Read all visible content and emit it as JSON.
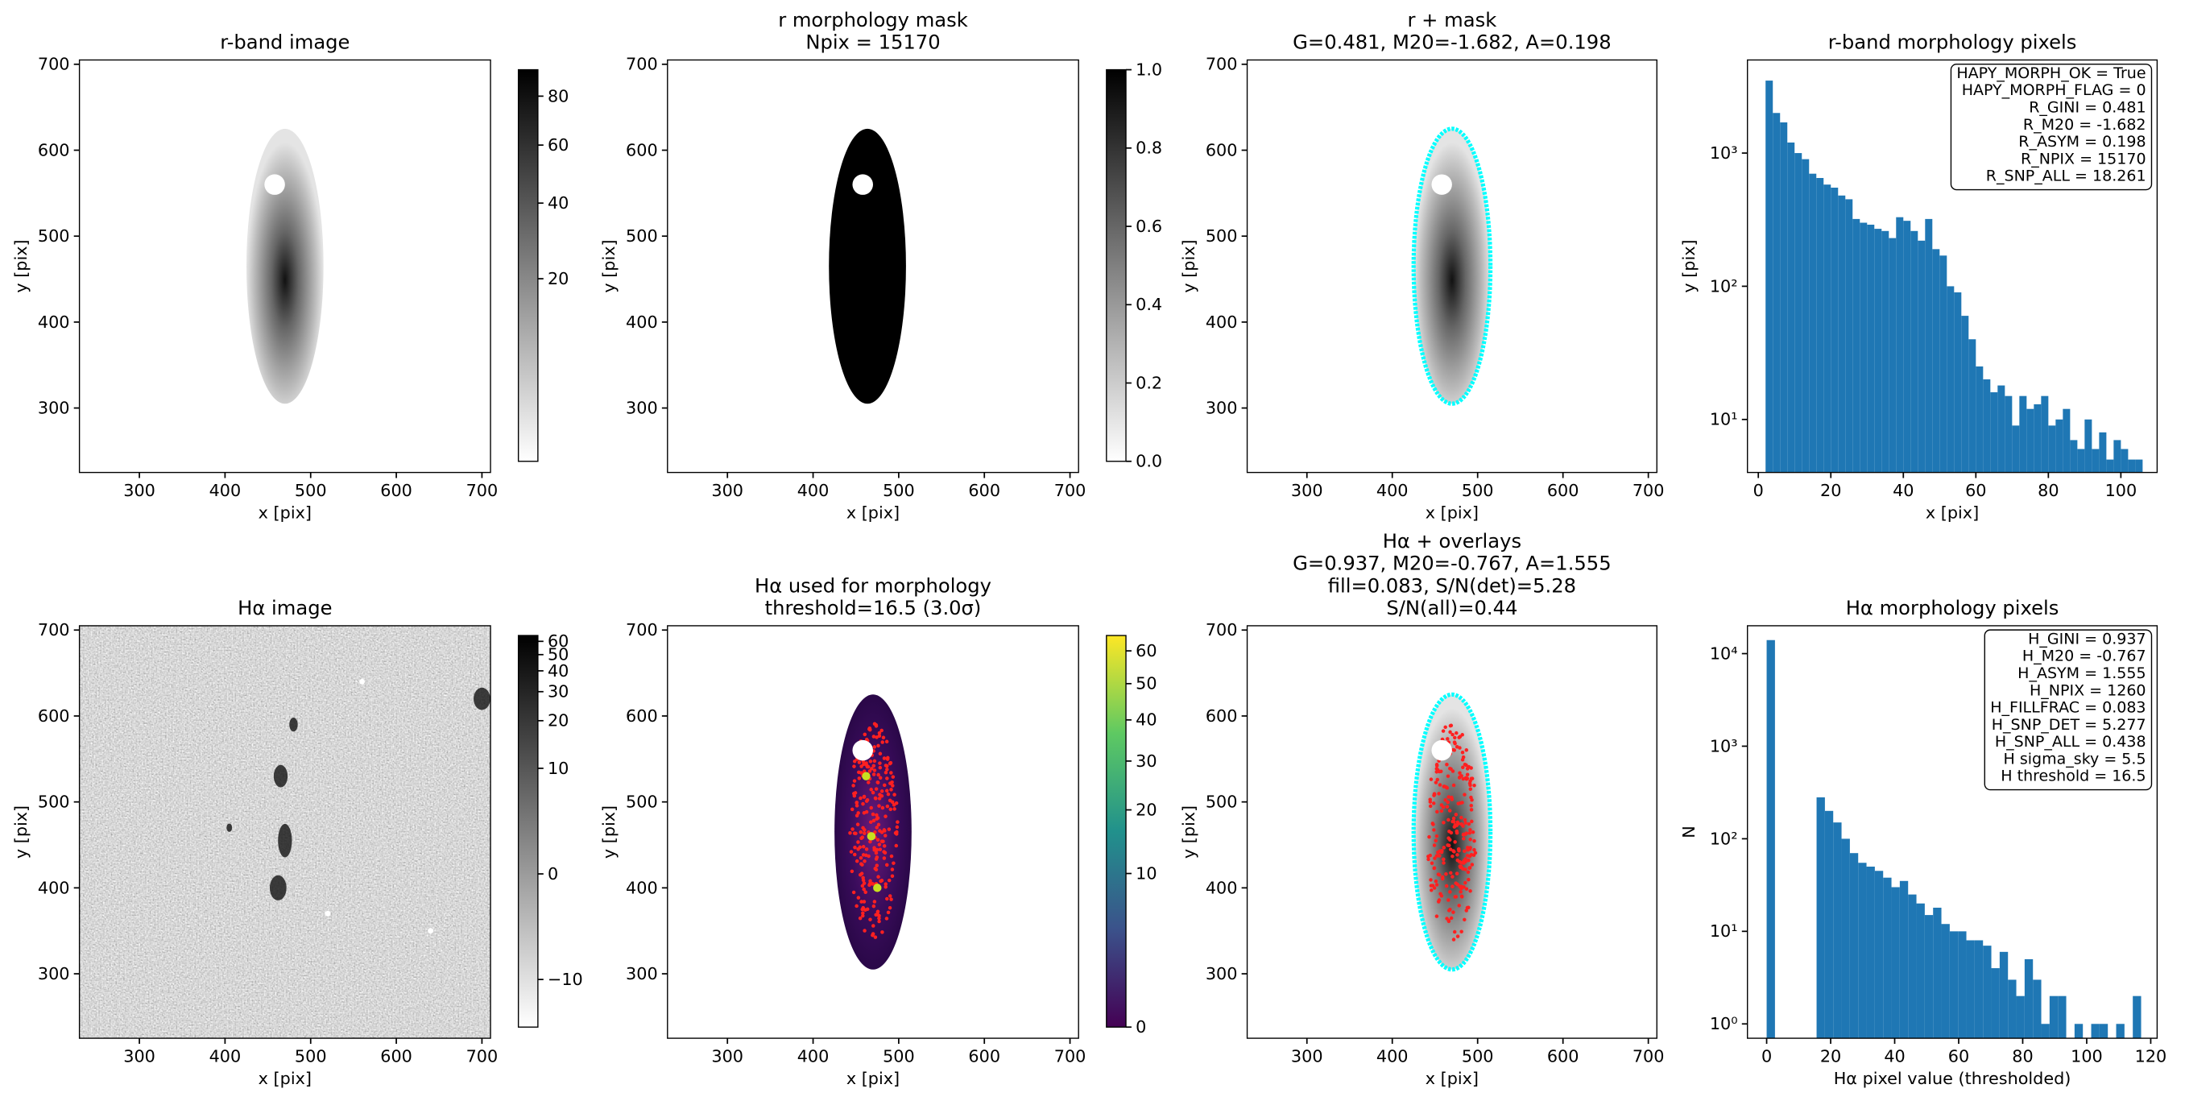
{
  "chart_data": [
    {
      "type": "image",
      "title": [
        "r-band image"
      ],
      "xlabel": "x [pix]",
      "ylabel": "y [pix]",
      "xlim": [
        230,
        710
      ],
      "ylim": [
        225,
        705
      ],
      "xticks": [
        300,
        400,
        500,
        600,
        700
      ],
      "yticks": [
        300,
        400,
        500,
        600,
        700
      ],
      "cmap": "gray_r",
      "colorbar": {
        "lim": [
          0,
          92
        ],
        "stretch": "sqrt",
        "ticks": [
          20,
          40,
          60,
          80
        ]
      }
    },
    {
      "type": "image",
      "title": [
        "r morphology mask",
        "Npix = 15170"
      ],
      "xlabel": "x [pix]",
      "ylabel": "y [pix]",
      "xlim": [
        230,
        710
      ],
      "ylim": [
        225,
        705
      ],
      "xticks": [
        300,
        400,
        500,
        600,
        700
      ],
      "yticks": [
        300,
        400,
        500,
        600,
        700
      ],
      "cmap": "gray_r",
      "colorbar": {
        "lim": [
          0,
          1
        ],
        "stretch": "linear",
        "ticks": [
          {
            "value": 0,
            "label": "0.0"
          },
          {
            "value": 0.2,
            "label": "0.2"
          },
          {
            "value": 0.4,
            "label": "0.4"
          },
          {
            "value": 0.6,
            "label": "0.6"
          },
          {
            "value": 0.8,
            "label": "0.8"
          },
          {
            "value": 1,
            "label": "1.0"
          }
        ]
      }
    },
    {
      "type": "image",
      "title": [
        "r + mask",
        "G=0.481, M20=-1.682, A=0.198"
      ],
      "xlabel": "x [pix]",
      "ylabel": "y [pix]",
      "xlim": [
        230,
        710
      ],
      "ylim": [
        225,
        705
      ],
      "xticks": [
        300,
        400,
        500,
        600,
        700
      ],
      "yticks": [
        300,
        400,
        500,
        600,
        700
      ],
      "cmap": "gray_r"
    },
    {
      "type": "histogram",
      "title": [
        "r-band morphology pixels"
      ],
      "xlabel": "x [pix]",
      "ylabel": "y [pix]",
      "xlim": [
        -3,
        110
      ],
      "ylim": [
        4,
        5000
      ],
      "log_y": true,
      "color": "#1f77b4",
      "xticks": [
        0,
        20,
        40,
        60,
        80,
        100
      ],
      "yticks": [
        {
          "value": 10,
          "label": "10¹"
        },
        {
          "value": 100,
          "label": "10²"
        },
        {
          "value": 1000,
          "label": "10³"
        }
      ],
      "bins": [
        2,
        4,
        6,
        8,
        10,
        12,
        14,
        16,
        18,
        20,
        22,
        24,
        26,
        28,
        30,
        32,
        34,
        36,
        38,
        40,
        42,
        44,
        46,
        48,
        50,
        52,
        54,
        56,
        58,
        60,
        62,
        64,
        66,
        68,
        70,
        72,
        74,
        76,
        78,
        80,
        82,
        84,
        86,
        88,
        90,
        92,
        94,
        96,
        98,
        100,
        102,
        104,
        106
      ],
      "counts": [
        3500,
        2000,
        1700,
        1200,
        1000,
        900,
        700,
        650,
        580,
        550,
        480,
        450,
        320,
        300,
        290,
        270,
        260,
        230,
        330,
        310,
        260,
        220,
        320,
        190,
        170,
        100,
        90,
        60,
        40,
        25,
        20,
        16,
        18,
        15,
        9,
        15,
        12,
        13,
        15,
        9,
        10,
        12,
        7,
        6,
        10,
        6,
        8,
        5,
        7,
        6,
        5,
        5
      ],
      "annotation": [
        "HAPY_MORPH_OK = True",
        "HAPY_MORPH_FLAG = 0",
        "R_GINI = 0.481",
        "R_M20 = -1.682",
        "R_ASYM = 0.198",
        "R_NPIX = 15170",
        "R_SNP_ALL = 18.261"
      ]
    },
    {
      "type": "image",
      "title": [
        "Hα image"
      ],
      "xlabel": "x [pix]",
      "ylabel": "y [pix]",
      "xlim": [
        230,
        710
      ],
      "ylim": [
        225,
        705
      ],
      "xticks": [
        300,
        400,
        500,
        600,
        700
      ],
      "yticks": [
        300,
        400,
        500,
        600,
        700
      ],
      "cmap": "gray_r",
      "colorbar": {
        "lim": [
          -20,
          65
        ],
        "stretch": "asinh",
        "ticks": [
          {
            "value": -10,
            "label": "−10"
          },
          0,
          10,
          20,
          30,
          40,
          50,
          60
        ]
      }
    },
    {
      "type": "image",
      "title": [
        "Hα used for morphology",
        "threshold=16.5 (3.0σ)"
      ],
      "xlabel": "x [pix]",
      "ylabel": "y [pix]",
      "xlim": [
        230,
        710
      ],
      "ylim": [
        225,
        705
      ],
      "xticks": [
        300,
        400,
        500,
        600,
        700
      ],
      "yticks": [
        300,
        400,
        500,
        600,
        700
      ],
      "cmap": "viridis",
      "colorbar": {
        "lim": [
          0,
          65
        ],
        "stretch": "sqrt",
        "ticks": [
          0,
          10,
          20,
          30,
          40,
          50,
          60
        ]
      }
    },
    {
      "type": "image",
      "title": [
        "Hα + overlays",
        "G=0.937, M20=-0.767, A=1.555",
        "fill=0.083, S/N(det)=5.28",
        "S/N(all)=0.44"
      ],
      "xlabel": "x [pix]",
      "ylabel": "y [pix]",
      "xlim": [
        230,
        710
      ],
      "ylim": [
        225,
        705
      ],
      "xticks": [
        300,
        400,
        500,
        600,
        700
      ],
      "yticks": [
        300,
        400,
        500,
        600,
        700
      ],
      "cmap": "gray_r"
    },
    {
      "type": "histogram",
      "title": [
        "Hα morphology pixels"
      ],
      "xlabel": "Hα pixel value (thresholded)",
      "ylabel": "N",
      "xlim": [
        -6,
        122
      ],
      "ylim": [
        0.7,
        20000
      ],
      "log_y": true,
      "color": "#1f77b4",
      "xticks": [
        0,
        20,
        40,
        60,
        80,
        100,
        120
      ],
      "yticks": [
        {
          "value": 1,
          "label": "10⁰"
        },
        {
          "value": 10,
          "label": "10¹"
        },
        {
          "value": 100,
          "label": "10²"
        },
        {
          "value": 1000,
          "label": "10³"
        },
        {
          "value": 10000,
          "label": "10⁴"
        }
      ],
      "bins": [
        0,
        2.6,
        5.2,
        7.8,
        10.4,
        13,
        15.6,
        18.2,
        20.8,
        23.4,
        26,
        28.6,
        31.2,
        33.8,
        36.4,
        39,
        41.6,
        44.2,
        46.8,
        49.4,
        52,
        54.6,
        57.2,
        59.8,
        62.4,
        65,
        67.6,
        70.2,
        72.8,
        75.4,
        78,
        80.6,
        83.2,
        85.8,
        88.4,
        91,
        93.6,
        96.2,
        98.8,
        101.4,
        104,
        106.6,
        109.2,
        111.8,
        114.4,
        117
      ],
      "counts": [
        14000,
        0,
        0,
        0,
        0,
        0,
        280,
        200,
        150,
        100,
        70,
        55,
        50,
        45,
        38,
        30,
        35,
        25,
        20,
        15,
        18,
        12,
        10,
        10,
        8,
        8,
        7,
        4,
        6,
        3,
        2,
        5,
        3,
        1,
        2,
        2,
        0,
        1,
        0,
        1,
        1,
        0,
        1,
        0,
        2
      ],
      "annotation": [
        "H_GINI = 0.937",
        "H_M20 = -0.767",
        "H_ASYM = 1.555",
        "H_NPIX = 1260",
        "H_FILLFRAC = 0.083",
        "H_SNP_DET = 5.277",
        "H_SNP_ALL = 0.438",
        "H sigma_sky = 5.5",
        "H threshold = 16.5"
      ]
    }
  ]
}
